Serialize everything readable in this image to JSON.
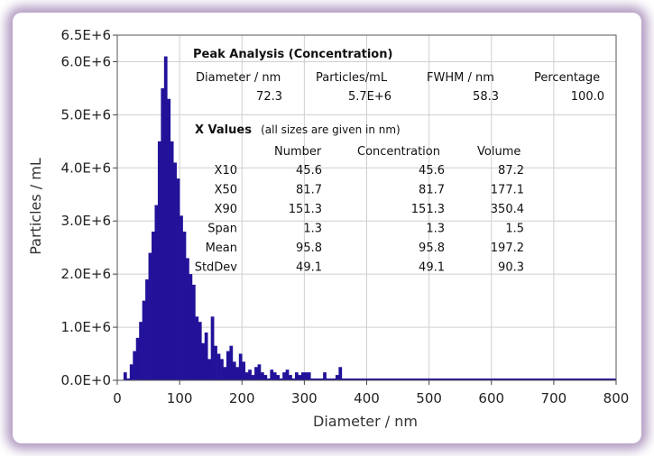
{
  "chart_data": {
    "type": "bar",
    "xlabel": "Diameter / nm",
    "ylabel": "Particles / mL",
    "xlim": [
      0,
      800
    ],
    "ylim": [
      0,
      6500000
    ],
    "x_ticks": [
      "0",
      "100",
      "200",
      "300",
      "400",
      "500",
      "600",
      "700",
      "800"
    ],
    "y_ticks": [
      "0.0E+0",
      "1.0E+6",
      "2.0E+6",
      "3.0E+6",
      "4.0E+6",
      "5.0E+6",
      "6.0E+6",
      "6.5E+6"
    ],
    "y_tick_values": [
      0,
      1000000,
      2000000,
      3000000,
      4000000,
      5000000,
      6000000,
      6500000
    ],
    "bin_width": 5,
    "color": "#22129a",
    "bins": [
      [
        10,
        150000
      ],
      [
        15,
        0
      ],
      [
        20,
        300000
      ],
      [
        25,
        550000
      ],
      [
        30,
        800000
      ],
      [
        35,
        1100000
      ],
      [
        40,
        1500000
      ],
      [
        45,
        1900000
      ],
      [
        50,
        2400000
      ],
      [
        55,
        2800000
      ],
      [
        60,
        3300000
      ],
      [
        65,
        4500000
      ],
      [
        70,
        5500000
      ],
      [
        75,
        6100000
      ],
      [
        80,
        5300000
      ],
      [
        85,
        4500000
      ],
      [
        90,
        4100000
      ],
      [
        95,
        3800000
      ],
      [
        100,
        3100000
      ],
      [
        105,
        2800000
      ],
      [
        110,
        2300000
      ],
      [
        115,
        2000000
      ],
      [
        120,
        1800000
      ],
      [
        125,
        1200000
      ],
      [
        130,
        1100000
      ],
      [
        135,
        700000
      ],
      [
        140,
        900000
      ],
      [
        145,
        400000
      ],
      [
        150,
        1200000
      ],
      [
        155,
        650000
      ],
      [
        160,
        500000
      ],
      [
        165,
        400000
      ],
      [
        170,
        250000
      ],
      [
        175,
        550000
      ],
      [
        180,
        650000
      ],
      [
        185,
        350000
      ],
      [
        190,
        250000
      ],
      [
        195,
        500000
      ],
      [
        200,
        350000
      ],
      [
        205,
        150000
      ],
      [
        210,
        200000
      ],
      [
        215,
        100000
      ],
      [
        220,
        250000
      ],
      [
        225,
        300000
      ],
      [
        230,
        150000
      ],
      [
        235,
        100000
      ],
      [
        240,
        0
      ],
      [
        245,
        200000
      ],
      [
        250,
        150000
      ],
      [
        255,
        100000
      ],
      [
        260,
        0
      ],
      [
        265,
        150000
      ],
      [
        270,
        200000
      ],
      [
        275,
        100000
      ],
      [
        280,
        0
      ],
      [
        285,
        150000
      ],
      [
        290,
        100000
      ],
      [
        295,
        150000
      ],
      [
        300,
        150000
      ],
      [
        305,
        150000
      ],
      [
        310,
        0
      ],
      [
        315,
        0
      ],
      [
        320,
        0
      ],
      [
        325,
        0
      ],
      [
        330,
        150000
      ],
      [
        335,
        0
      ],
      [
        340,
        0
      ],
      [
        345,
        0
      ],
      [
        350,
        100000
      ],
      [
        355,
        250000
      ],
      [
        360,
        0
      ]
    ]
  },
  "peak_analysis": {
    "heading": "Peak Analysis (Concentration)",
    "columns": [
      "Diameter / nm",
      "Particles/mL",
      "FWHM / nm",
      "Percentage"
    ],
    "values": [
      "72.3",
      "5.7E+6",
      "58.3",
      "100.0"
    ]
  },
  "x_values": {
    "heading": "X Values",
    "note": "(all sizes are given in nm)",
    "columns": [
      "Number",
      "Concentration",
      "Volume"
    ],
    "rows": [
      {
        "label": "X10",
        "values": [
          "45.6",
          "45.6",
          "87.2"
        ]
      },
      {
        "label": "X50",
        "values": [
          "81.7",
          "81.7",
          "177.1"
        ]
      },
      {
        "label": "X90",
        "values": [
          "151.3",
          "151.3",
          "350.4"
        ]
      },
      {
        "label": "Span",
        "values": [
          "1.3",
          "1.3",
          "1.5"
        ]
      },
      {
        "label": "Mean",
        "values": [
          "95.8",
          "95.8",
          "197.2"
        ]
      },
      {
        "label": "StdDev",
        "values": [
          "49.1",
          "49.1",
          "90.3"
        ]
      }
    ]
  }
}
